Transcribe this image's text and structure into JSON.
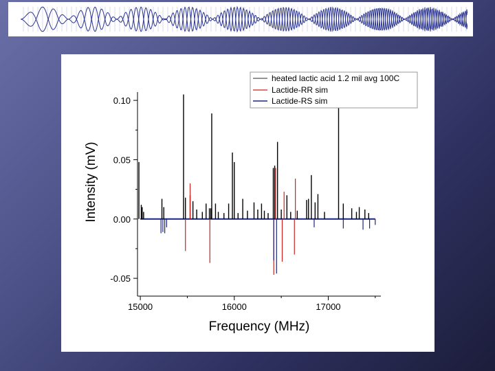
{
  "colors": {
    "banner_ink": "#2a3490",
    "experimental": "#000000",
    "legend_experimental": "#555555",
    "rr_sim": "#cc2222",
    "rs_sim": "#1a237e"
  },
  "chart_data": {
    "type": "line",
    "title": "",
    "xlabel": "Frequency (MHz)",
    "ylabel": "Intensity (mV)",
    "xlim": [
      14970,
      17560
    ],
    "ylim": [
      -0.065,
      0.107
    ],
    "x_ticks": [
      15000,
      16000,
      17000
    ],
    "x_tick_labels": [
      "15000",
      "16000",
      "17000"
    ],
    "y_ticks": [
      0.1,
      0.05,
      0.0,
      -0.05
    ],
    "y_tick_labels": [
      "0.10",
      "0.05",
      "0.00",
      "-0.05"
    ],
    "legend": {
      "position": "top-right"
    },
    "series": [
      {
        "name": "heated lactic acid 1.2 mil avg 100C",
        "color": "#000000",
        "peaks": [
          [
            14985,
            0.048
          ],
          [
            15010,
            0.012
          ],
          [
            15020,
            0.01
          ],
          [
            15035,
            0.006
          ],
          [
            15230,
            0.017
          ],
          [
            15250,
            0.01
          ],
          [
            15460,
            0.105
          ],
          [
            15480,
            0.018
          ],
          [
            15530,
            0.02
          ],
          [
            15560,
            0.015
          ],
          [
            15600,
            0.008
          ],
          [
            15660,
            0.006
          ],
          [
            15700,
            0.013
          ],
          [
            15735,
            0.009
          ],
          [
            15750,
            0.009
          ],
          [
            15760,
            0.089
          ],
          [
            15800,
            0.013
          ],
          [
            15830,
            0.006
          ],
          [
            15890,
            0.005
          ],
          [
            15940,
            0.013
          ],
          [
            15980,
            0.056
          ],
          [
            16000,
            0.048
          ],
          [
            16040,
            0.005
          ],
          [
            16090,
            0.017
          ],
          [
            16140,
            0.007
          ],
          [
            16210,
            0.014
          ],
          [
            16250,
            0.008
          ],
          [
            16290,
            0.013
          ],
          [
            16320,
            0.007
          ],
          [
            16360,
            0.005
          ],
          [
            16415,
            0.043
          ],
          [
            16430,
            0.045
          ],
          [
            16460,
            0.065
          ],
          [
            16500,
            0.008
          ],
          [
            16560,
            0.02
          ],
          [
            16600,
            0.006
          ],
          [
            16670,
            0.007
          ],
          [
            16770,
            0.016
          ],
          [
            16790,
            0.017
          ],
          [
            16820,
            0.037
          ],
          [
            16860,
            0.014
          ],
          [
            16890,
            0.021
          ],
          [
            16960,
            0.006
          ],
          [
            17110,
            0.098
          ],
          [
            17160,
            0.013
          ],
          [
            17250,
            0.009
          ],
          [
            17300,
            0.006
          ],
          [
            17330,
            0.01
          ],
          [
            17390,
            0.008
          ],
          [
            17430,
            0.005
          ]
        ]
      },
      {
        "name": "Lactide-RR sim",
        "color": "#cc2222",
        "peaks": [
          [
            15480,
            -0.027
          ],
          [
            15530,
            0.03
          ],
          [
            15740,
            -0.037
          ],
          [
            16420,
            -0.047
          ],
          [
            16440,
            0.043
          ],
          [
            16510,
            -0.036
          ],
          [
            16530,
            0.023
          ],
          [
            16640,
            -0.03
          ],
          [
            16650,
            0.034
          ]
        ]
      },
      {
        "name": "Lactide-RS sim",
        "color": "#1a237e",
        "peaks": [
          [
            15220,
            -0.012
          ],
          [
            15240,
            -0.011
          ],
          [
            15260,
            -0.012
          ],
          [
            15280,
            -0.007
          ],
          [
            16420,
            -0.035
          ],
          [
            16450,
            -0.046
          ],
          [
            16850,
            -0.007
          ],
          [
            17160,
            -0.008
          ],
          [
            17370,
            -0.009
          ],
          [
            17440,
            -0.008
          ],
          [
            17500,
            -0.005
          ]
        ]
      }
    ]
  }
}
